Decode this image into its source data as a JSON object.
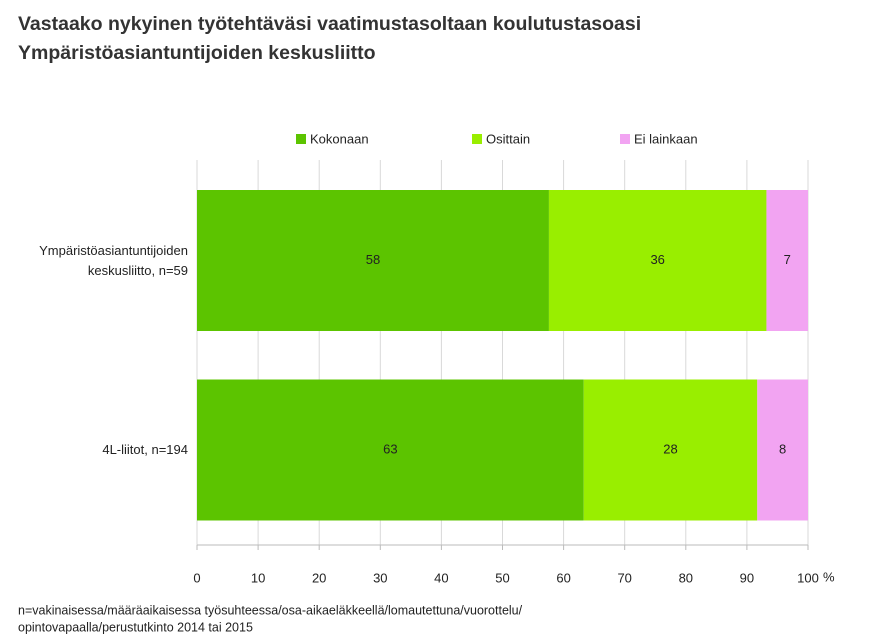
{
  "chart_data": {
    "type": "stacked-barh",
    "title": [
      "Vastaako nykyinen työtehtäväsi vaatimustasoltaan koulutustasoasi",
      "Ympäristöasiantuntijoiden keskusliitto"
    ],
    "categories": [
      "Ympäristöasiantuntijoiden keskusliitto, n=59",
      "4L-liitot, n=194"
    ],
    "series": [
      {
        "name": "Kokonaan",
        "color": "#5cc400",
        "values": [
          57.6,
          63.3
        ],
        "value_labels": [
          "58",
          "63"
        ]
      },
      {
        "name": "Osittain",
        "color": "#99ee00",
        "values": [
          35.6,
          28.4
        ],
        "value_labels": [
          "36",
          "28"
        ]
      },
      {
        "name": "Ei lainkaan",
        "color": "#f2a4f2",
        "values": [
          6.8,
          8.3
        ],
        "value_labels": [
          "7",
          "8"
        ]
      }
    ],
    "xlim": [
      0,
      100
    ],
    "xticks": [
      0,
      10,
      20,
      30,
      40,
      50,
      60,
      70,
      80,
      90,
      100
    ],
    "x_unit": "%",
    "grid": true,
    "legend": "top",
    "footnote": [
      "n=vakinaisessa/määräaikaisessa työsuhteessa/osa-aikaeläkkeellä/lomautettuna/vuorottelu/",
      "opintovapaalla/perustutkinto  2014 tai 2015"
    ]
  }
}
